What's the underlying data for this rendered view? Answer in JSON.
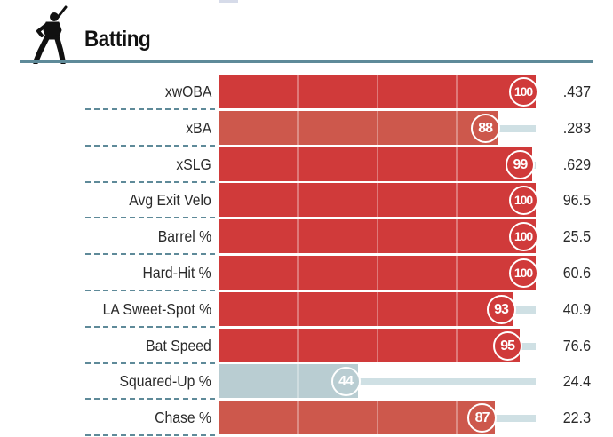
{
  "section": {
    "title": "Batting",
    "icon": "batter-silhouette-icon"
  },
  "colors": {
    "elite": "#d03a3a",
    "above_average": "#cd584c",
    "below_average": "#b9cdd2",
    "track": "#cfe0e4",
    "divider": "#5e8a99"
  },
  "metrics": [
    {
      "label": "xwOBA",
      "percentile": 100,
      "value": ".437",
      "tier": "elite"
    },
    {
      "label": "xBA",
      "percentile": 88,
      "value": ".283",
      "tier": "above_average"
    },
    {
      "label": "xSLG",
      "percentile": 99,
      "value": ".629",
      "tier": "elite"
    },
    {
      "label": "Avg Exit Velo",
      "percentile": 100,
      "value": "96.5",
      "tier": "elite"
    },
    {
      "label": "Barrel %",
      "percentile": 100,
      "value": "25.5",
      "tier": "elite"
    },
    {
      "label": "Hard-Hit %",
      "percentile": 100,
      "value": "60.6",
      "tier": "elite"
    },
    {
      "label": "LA Sweet-Spot %",
      "percentile": 93,
      "value": "40.9",
      "tier": "elite"
    },
    {
      "label": "Bat Speed",
      "percentile": 95,
      "value": "76.6",
      "tier": "elite"
    },
    {
      "label": "Squared-Up %",
      "percentile": 44,
      "value": "24.4",
      "tier": "below_average"
    },
    {
      "label": "Chase %",
      "percentile": 87,
      "value": "22.3",
      "tier": "above_average"
    }
  ]
}
